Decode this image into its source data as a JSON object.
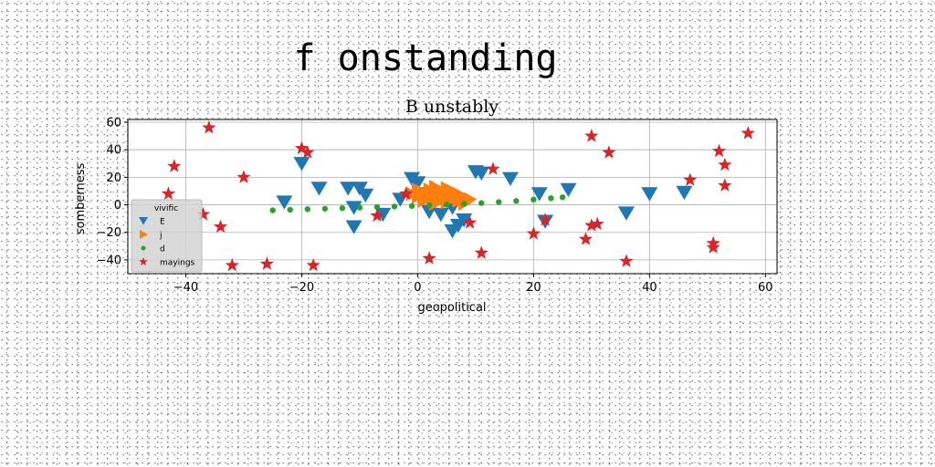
{
  "figure": {
    "suptitle": "f onstanding"
  },
  "chart_data": {
    "type": "scatter",
    "title": "B unstably",
    "xlabel": "geopolitical",
    "ylabel": "somberness",
    "xlim": [
      -50,
      62
    ],
    "ylim": [
      -50,
      62
    ],
    "xticks": [
      -40,
      -20,
      0,
      20,
      40,
      60
    ],
    "yticks": [
      -40,
      -20,
      0,
      20,
      40,
      60
    ],
    "grid": true,
    "legend": {
      "title": "vivific",
      "placement": "lower-left"
    },
    "series": [
      {
        "name": "E",
        "marker": "triangle-down",
        "color": "#1f77b4",
        "points": [
          [
            -23,
            2
          ],
          [
            -20,
            30
          ],
          [
            -17,
            12
          ],
          [
            -12,
            12
          ],
          [
            -11,
            -2
          ],
          [
            -11,
            -16
          ],
          [
            -10,
            12
          ],
          [
            -9,
            7
          ],
          [
            -6,
            -7
          ],
          [
            -3,
            4
          ],
          [
            -1,
            19
          ],
          [
            0,
            16
          ],
          [
            1,
            8
          ],
          [
            2,
            -5
          ],
          [
            4,
            -7
          ],
          [
            5,
            3
          ],
          [
            6,
            -2
          ],
          [
            6,
            -19
          ],
          [
            7,
            -15
          ],
          [
            8,
            -11
          ],
          [
            10,
            24
          ],
          [
            11,
            23
          ],
          [
            16,
            19
          ],
          [
            21,
            8
          ],
          [
            22,
            -12
          ],
          [
            26,
            11
          ],
          [
            36,
            -6
          ],
          [
            40,
            8
          ],
          [
            46,
            9
          ]
        ]
      },
      {
        "name": "j",
        "marker": "triangle-right",
        "color": "#ff7f0e",
        "points": [
          [
            -1,
            8
          ],
          [
            0,
            6
          ],
          [
            0,
            11
          ],
          [
            1,
            3
          ],
          [
            1,
            9
          ],
          [
            2,
            5
          ],
          [
            2,
            11
          ],
          [
            3,
            1
          ],
          [
            3,
            7
          ],
          [
            3,
            13
          ],
          [
            4,
            4
          ],
          [
            4,
            9
          ],
          [
            5,
            2
          ],
          [
            5,
            7
          ],
          [
            5,
            12
          ],
          [
            6,
            5
          ],
          [
            6,
            10
          ],
          [
            7,
            3
          ],
          [
            7,
            8
          ],
          [
            8,
            5
          ],
          [
            8,
            1
          ],
          [
            9,
            4
          ]
        ]
      },
      {
        "name": "d",
        "marker": "circle",
        "color": "#2ca02c",
        "points": [
          [
            -25,
            -4
          ],
          [
            -22,
            -3.6
          ],
          [
            -19,
            -3.2
          ],
          [
            -16,
            -2.8
          ],
          [
            -13,
            -2.4
          ],
          [
            -10,
            -2
          ],
          [
            -7,
            -1.6
          ],
          [
            -4,
            -1.2
          ],
          [
            -1,
            -0.8
          ],
          [
            2,
            -0.3
          ],
          [
            5,
            0.2
          ],
          [
            8,
            0.7
          ],
          [
            11,
            1.3
          ],
          [
            14,
            2
          ],
          [
            17,
            2.8
          ],
          [
            20,
            3.8
          ],
          [
            23,
            4.8
          ],
          [
            25,
            5.5
          ]
        ]
      },
      {
        "name": "mayings",
        "marker": "star",
        "color": "#d62728",
        "points": [
          [
            -43,
            8
          ],
          [
            -42,
            28
          ],
          [
            -37,
            -7
          ],
          [
            -36,
            56
          ],
          [
            -34,
            -16
          ],
          [
            -32,
            -44
          ],
          [
            -30,
            20
          ],
          [
            -26,
            -43
          ],
          [
            -20,
            41
          ],
          [
            -19,
            38
          ],
          [
            -18,
            -44
          ],
          [
            -7,
            -8
          ],
          [
            -2,
            8
          ],
          [
            2,
            -39
          ],
          [
            9,
            -13
          ],
          [
            11,
            -35
          ],
          [
            13,
            26
          ],
          [
            20,
            -21
          ],
          [
            22,
            -11
          ],
          [
            29,
            -25
          ],
          [
            30,
            50
          ],
          [
            30,
            -15
          ],
          [
            31,
            -14
          ],
          [
            33,
            38
          ],
          [
            36,
            -41
          ],
          [
            47,
            18
          ],
          [
            51,
            -28
          ],
          [
            51,
            -31
          ],
          [
            52,
            39
          ],
          [
            53,
            29
          ],
          [
            53,
            14
          ],
          [
            57,
            52
          ]
        ]
      }
    ]
  }
}
